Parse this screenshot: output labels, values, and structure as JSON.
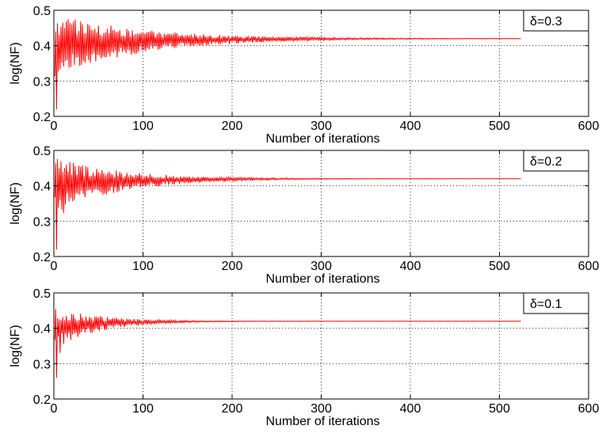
{
  "chart_data": [
    {
      "type": "line",
      "legend": "δ=0.3",
      "legend_position": "top-right",
      "xlabel": "Number of iterations",
      "ylabel": "log(NF)",
      "xlim": [
        0,
        600
      ],
      "ylim": [
        0.2,
        0.5
      ],
      "xticks": [
        "0",
        "100",
        "200",
        "300",
        "400",
        "500",
        "600"
      ],
      "yticks": [
        "0.2",
        "0.3",
        "0.4",
        "0.5"
      ],
      "grid": true,
      "line_color": "#ff0000",
      "x_max": 524,
      "final_value": 0.42,
      "oscillation": {
        "start_amplitude": 0.09,
        "decay_iterations": 100,
        "min_at_start": 0.22
      }
    },
    {
      "type": "line",
      "legend": "δ=0.2",
      "legend_position": "top-right",
      "xlabel": "Number of iterations",
      "ylabel": "log(NF)",
      "xlim": [
        0,
        600
      ],
      "ylim": [
        0.2,
        0.5
      ],
      "xticks": [
        "0",
        "100",
        "200",
        "300",
        "400",
        "500",
        "600"
      ],
      "yticks": [
        "0.2",
        "0.3",
        "0.4",
        "0.5"
      ],
      "grid": true,
      "line_color": "#ff0000",
      "x_max": 524,
      "final_value": 0.42,
      "oscillation": {
        "start_amplitude": 0.08,
        "decay_iterations": 75,
        "min_at_start": 0.22
      }
    },
    {
      "type": "line",
      "legend": "δ=0.1",
      "legend_position": "top-right",
      "xlabel": "Number of iterations",
      "ylabel": "log(NF)",
      "xlim": [
        0,
        600
      ],
      "ylim": [
        0.2,
        0.5
      ],
      "xticks": [
        "0",
        "100",
        "200",
        "300",
        "400",
        "500",
        "600"
      ],
      "yticks": [
        "0.2",
        "0.3",
        "0.4",
        "0.5"
      ],
      "grid": true,
      "line_color": "#ff0000",
      "x_max": 524,
      "final_value": 0.42,
      "oscillation": {
        "start_amplitude": 0.06,
        "decay_iterations": 50,
        "min_at_start": 0.26
      }
    }
  ]
}
